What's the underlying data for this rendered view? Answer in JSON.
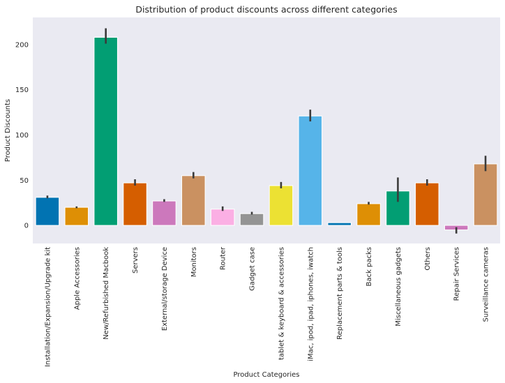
{
  "chart_data": {
    "type": "bar",
    "title": "Distribution of product discounts across different categories",
    "xlabel": "Product Categories",
    "ylabel": "Product Discounts",
    "ylim": [
      -20,
      230
    ],
    "yticks": [
      0,
      50,
      100,
      150,
      200
    ],
    "grid": false,
    "background": "#eaeaf2",
    "categories": [
      "Installation/Expansion/Upgrade kit",
      "Apple Accessories",
      "New/Refurbished Macbook",
      "Servers",
      "External/storage Device",
      "Monitors",
      "Router",
      "Gadget case",
      "tablet & keyboard & accessories",
      "iMac, ipod, ipad,  iphones, iwatch",
      "Replacement parts & tools",
      "Back packs",
      "Miscellaneous gadgets",
      "Others",
      "Repair Services",
      "Surveillance cameras"
    ],
    "values": [
      31,
      20,
      208,
      47,
      27,
      55,
      18,
      13,
      44,
      121,
      3,
      24,
      38,
      47,
      -5,
      68
    ],
    "error_low": [
      30,
      19,
      201,
      44,
      26,
      52,
      16,
      12,
      41,
      115,
      3,
      23,
      26,
      44,
      -9,
      60
    ],
    "error_high": [
      33,
      21,
      218,
      51,
      29,
      59,
      21,
      15,
      48,
      128,
      3,
      26,
      53,
      51,
      -2,
      77
    ],
    "colors": [
      "#0173b2",
      "#de8f05",
      "#029e73",
      "#d55e00",
      "#cc78bc",
      "#ca9161",
      "#fbafe4",
      "#949494",
      "#ece133",
      "#56b4e9",
      "#0173b2",
      "#de8f05",
      "#029e73",
      "#d55e00",
      "#cc78bc",
      "#ca9161"
    ]
  }
}
